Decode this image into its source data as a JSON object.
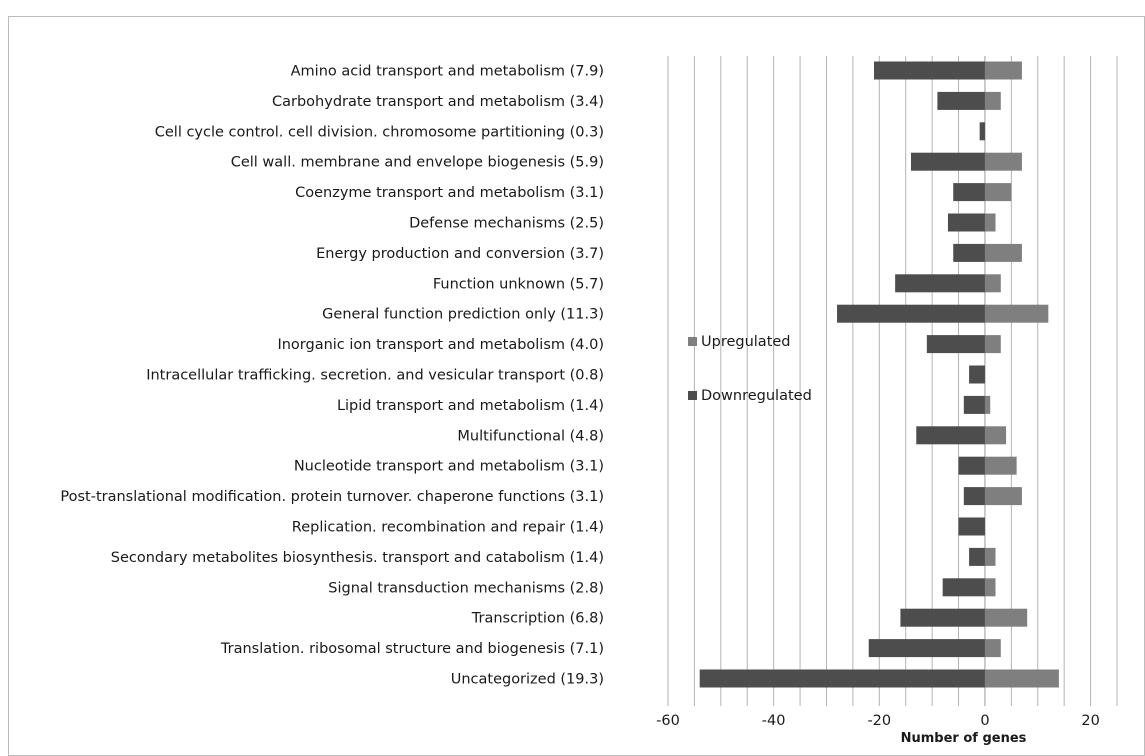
{
  "chart_data": {
    "type": "bar",
    "orientation": "horizontal",
    "stacked": true,
    "xlabel": "Number of genes",
    "xlim": [
      -60,
      25
    ],
    "xticks": [
      -60,
      -40,
      -20,
      0,
      20
    ],
    "grid": true,
    "legend_position": "inside-left",
    "categories": [
      "Amino acid transport and metabolism  (7.9)",
      "Carbohydrate transport and metabolism  (3.4)",
      "Cell cycle control. cell division. chromosome partitioning  (0.3)",
      "Cell wall. membrane and envelope biogenesis  (5.9)",
      "Coenzyme transport and metabolism  (3.1)",
      "Defense mechanisms  (2.5)",
      "Energy production and conversion  (3.7)",
      "Function unknown  (5.7)",
      "General function prediction only  (11.3)",
      "Inorganic ion transport and metabolism  (4.0)",
      "Intracellular trafficking. secretion. and vesicular transport  (0.8)",
      "Lipid transport and metabolism  (1.4)",
      "Multifunctional  (4.8)",
      "Nucleotide transport and metabolism  (3.1)",
      "Post-translational modification. protein turnover. chaperone functions  (3.1)",
      "Replication. recombination and repair  (1.4)",
      "Secondary metabolites biosynthesis. transport and catabolism   (1.4)",
      "Signal transduction mechanisms  (2.8)",
      "Transcription  (6.8)",
      "Translation. ribosomal structure and biogenesis  (7.1)",
      "Uncategorized  (19.3)"
    ],
    "series": [
      {
        "name": "Upregulated",
        "color": "#7f7f7f",
        "values": [
          7,
          3,
          0,
          7,
          5,
          2,
          7,
          3,
          12,
          3,
          0,
          1,
          4,
          6,
          7,
          0,
          2,
          2,
          8,
          3,
          14
        ]
      },
      {
        "name": "Downregulated",
        "color": "#4d4d4d",
        "values": [
          -21,
          -9,
          -1,
          -14,
          -6,
          -7,
          -6,
          -17,
          -28,
          -11,
          -3,
          -4,
          -13,
          -5,
          -4,
          -5,
          -3,
          -8,
          -16,
          -22,
          -54
        ]
      }
    ]
  }
}
